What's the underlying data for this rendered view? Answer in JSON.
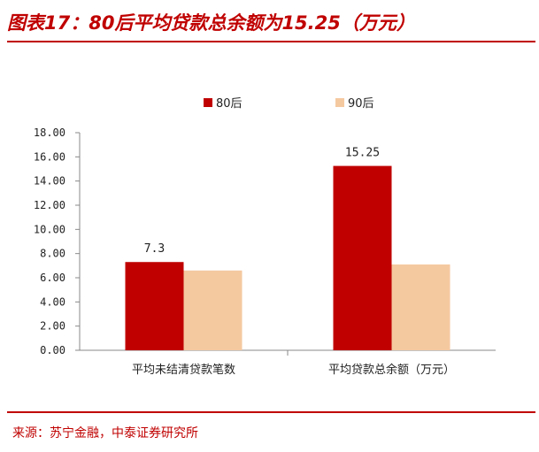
{
  "header": {
    "title": "图表17：80后平均贷款总余额为15.25（万元）"
  },
  "footer": {
    "source": "来源：苏宁金融，中泰证券研究所"
  },
  "colors": {
    "accent": "#c00000",
    "series_80": "#c00000",
    "series_90": "#f5c9a0"
  },
  "chart_data": {
    "type": "bar",
    "title": "",
    "xlabel": "",
    "ylabel": "",
    "categories": [
      "平均未结清贷款笔数",
      "平均贷款总余额（万元）"
    ],
    "series": [
      {
        "name": "80后",
        "values": [
          7.3,
          15.25
        ],
        "labels": [
          "7.3",
          "15.25"
        ]
      },
      {
        "name": "90后",
        "values": [
          6.6,
          7.1
        ],
        "labels": [
          null,
          null
        ]
      }
    ],
    "ylim": [
      0,
      18
    ],
    "yticks": [
      "0.00",
      "2.00",
      "4.00",
      "6.00",
      "8.00",
      "10.00",
      "12.00",
      "14.00",
      "16.00",
      "18.00"
    ],
    "legend": "top-center",
    "grid": false
  }
}
